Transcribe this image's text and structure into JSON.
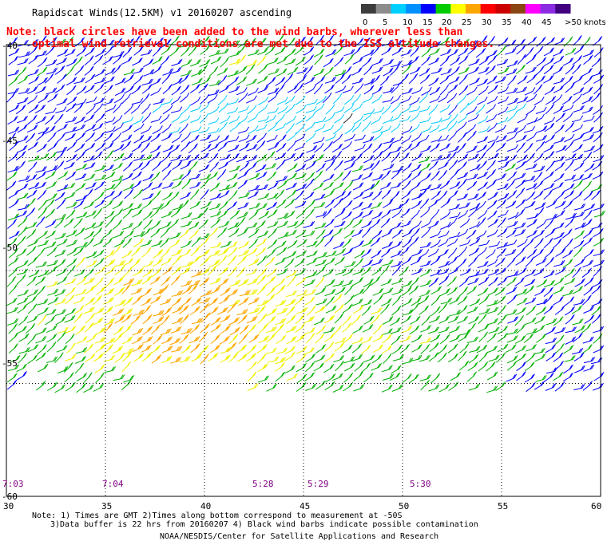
{
  "title": "Rapidscat Winds(12.5KM) v1 20160207 ascending",
  "note": {
    "line1": "Note: black circles have been added to the wind barbs, wherever less than",
    "line2": "optimal wind retrieval conditions are met due to the ISS altitude changes."
  },
  "legend": {
    "labels": [
      "0",
      "5",
      "10",
      "15",
      "20",
      "25",
      "30",
      "35",
      "40",
      "45",
      ">50 knots"
    ],
    "colors": [
      "#3c3c3c",
      "#8c8c8c",
      "#00d0ff",
      "#0090ff",
      "#0000ff",
      "#00cc00",
      "#ffff00",
      "#ffa500",
      "#ff0000",
      "#cc0000",
      "#8b4513",
      "#ff00ff",
      "#8a2be2",
      "#400080"
    ]
  },
  "axes": {
    "lat_labels": [
      "-40",
      "-45",
      "-50",
      "-55",
      "-60"
    ],
    "lon_labels": [
      "30",
      "35",
      "40",
      "45",
      "50",
      "55",
      "60"
    ]
  },
  "times": [
    "7:03",
    "7:04",
    "5:28",
    "5:29",
    "5:30"
  ],
  "footer": {
    "line1": "Note: 1) Times are GMT 2)Times along bottom correspond to measurement at -50S",
    "line2": "3)Data buffer is 22 hrs from 20160207 4) Black wind barbs indicate possible contamination",
    "credit": "NOAA/NESDIS/Center for Satellite Applications and Research"
  }
}
